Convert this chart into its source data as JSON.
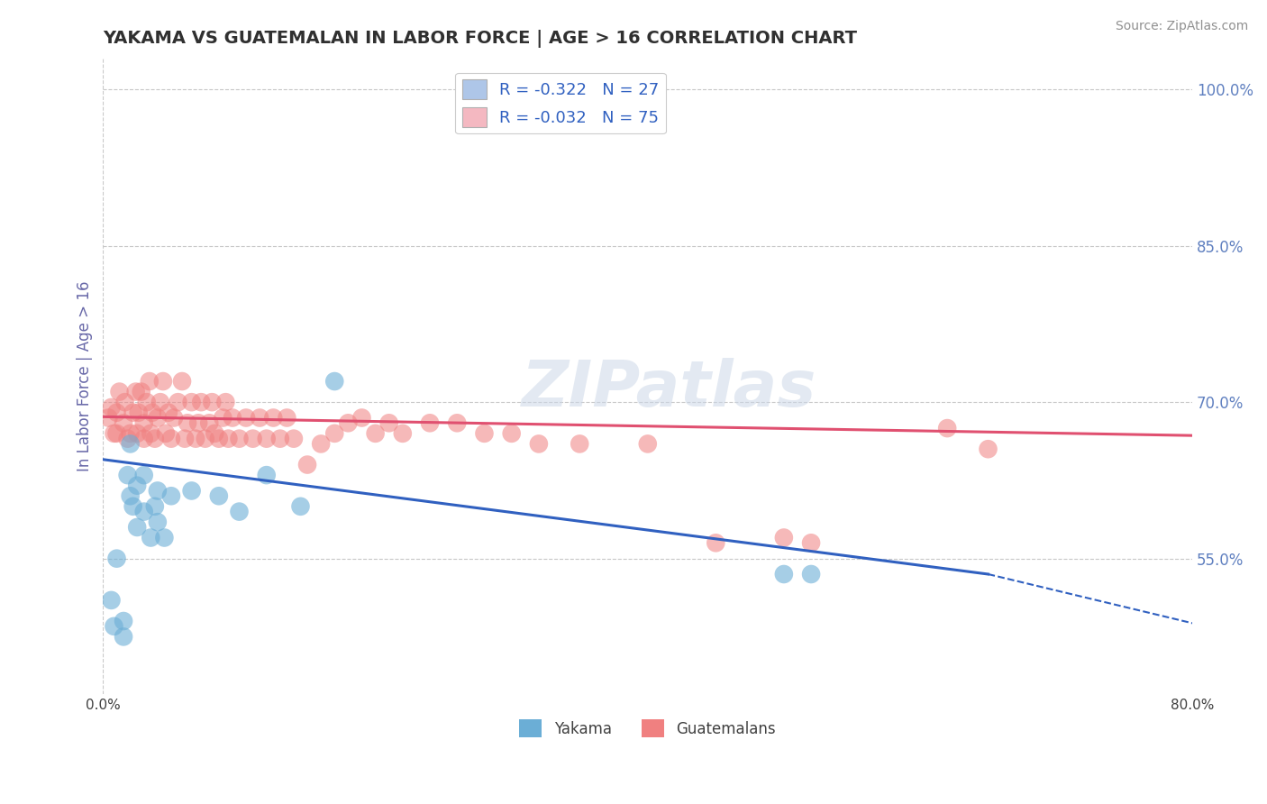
{
  "title": "YAKAMA VS GUATEMALAN IN LABOR FORCE | AGE > 16 CORRELATION CHART",
  "source": "Source: ZipAtlas.com",
  "ylabel": "In Labor Force | Age > 16",
  "x_min": 0.0,
  "x_max": 0.8,
  "y_min": 0.42,
  "y_max": 1.03,
  "x_ticks": [
    0.0,
    0.2,
    0.4,
    0.6,
    0.8
  ],
  "x_tick_labels": [
    "0.0%",
    "",
    "",
    "",
    "80.0%"
  ],
  "y_ticks_right": [
    0.55,
    0.7,
    0.85,
    1.0
  ],
  "y_tick_labels_right": [
    "55.0%",
    "70.0%",
    "85.0%",
    "100.0%"
  ],
  "legend_labels": [
    "R = -0.322   N = 27",
    "R = -0.032   N = 75"
  ],
  "legend_colors": [
    "#aec6e8",
    "#f4b8c1"
  ],
  "watermark_text": "ZIPatlas",
  "yakama_color": "#6baed6",
  "guatemalan_color": "#f08080",
  "trend_yakama_color": "#3060c0",
  "trend_guatemalan_color": "#e05070",
  "background_color": "#ffffff",
  "grid_color": "#c8c8c8",
  "title_color": "#303030",
  "axis_label_color": "#6868a8",
  "tick_color_right": "#6080c0",
  "yakama_scatter_x": [
    0.006,
    0.008,
    0.01,
    0.015,
    0.015,
    0.018,
    0.02,
    0.02,
    0.022,
    0.025,
    0.025,
    0.03,
    0.03,
    0.035,
    0.038,
    0.04,
    0.04,
    0.045,
    0.05,
    0.065,
    0.085,
    0.1,
    0.12,
    0.145,
    0.17,
    0.5,
    0.52
  ],
  "yakama_scatter_y": [
    0.51,
    0.485,
    0.55,
    0.475,
    0.49,
    0.63,
    0.61,
    0.66,
    0.6,
    0.58,
    0.62,
    0.595,
    0.63,
    0.57,
    0.6,
    0.585,
    0.615,
    0.57,
    0.61,
    0.615,
    0.61,
    0.595,
    0.63,
    0.6,
    0.72,
    0.535,
    0.535
  ],
  "guatemalan_scatter_x": [
    0.004,
    0.006,
    0.008,
    0.01,
    0.01,
    0.012,
    0.015,
    0.016,
    0.018,
    0.02,
    0.022,
    0.024,
    0.025,
    0.026,
    0.028,
    0.03,
    0.03,
    0.032,
    0.034,
    0.035,
    0.036,
    0.038,
    0.04,
    0.042,
    0.044,
    0.046,
    0.048,
    0.05,
    0.052,
    0.055,
    0.058,
    0.06,
    0.062,
    0.065,
    0.068,
    0.07,
    0.072,
    0.075,
    0.078,
    0.08,
    0.082,
    0.085,
    0.088,
    0.09,
    0.092,
    0.095,
    0.1,
    0.105,
    0.11,
    0.115,
    0.12,
    0.125,
    0.13,
    0.135,
    0.14,
    0.15,
    0.16,
    0.17,
    0.18,
    0.19,
    0.2,
    0.21,
    0.22,
    0.24,
    0.26,
    0.28,
    0.3,
    0.32,
    0.35,
    0.4,
    0.45,
    0.5,
    0.52,
    0.62,
    0.65
  ],
  "guatemalan_scatter_y": [
    0.685,
    0.695,
    0.67,
    0.67,
    0.69,
    0.71,
    0.68,
    0.7,
    0.665,
    0.67,
    0.69,
    0.71,
    0.67,
    0.69,
    0.71,
    0.665,
    0.68,
    0.7,
    0.72,
    0.67,
    0.69,
    0.665,
    0.685,
    0.7,
    0.72,
    0.67,
    0.69,
    0.665,
    0.685,
    0.7,
    0.72,
    0.665,
    0.68,
    0.7,
    0.665,
    0.68,
    0.7,
    0.665,
    0.68,
    0.7,
    0.67,
    0.665,
    0.685,
    0.7,
    0.665,
    0.685,
    0.665,
    0.685,
    0.665,
    0.685,
    0.665,
    0.685,
    0.665,
    0.685,
    0.665,
    0.64,
    0.66,
    0.67,
    0.68,
    0.685,
    0.67,
    0.68,
    0.67,
    0.68,
    0.68,
    0.67,
    0.67,
    0.66,
    0.66,
    0.66,
    0.565,
    0.57,
    0.565,
    0.675,
    0.655
  ],
  "trend_yakama_x0": 0.0,
  "trend_yakama_y0": 0.645,
  "trend_yakama_x1": 0.65,
  "trend_yakama_y1": 0.535,
  "trend_yakama_dash_x1": 0.8,
  "trend_yakama_dash_y1": 0.488,
  "trend_guatemalan_x0": 0.0,
  "trend_guatemalan_y0": 0.686,
  "trend_guatemalan_x1": 0.8,
  "trend_guatemalan_y1": 0.668
}
